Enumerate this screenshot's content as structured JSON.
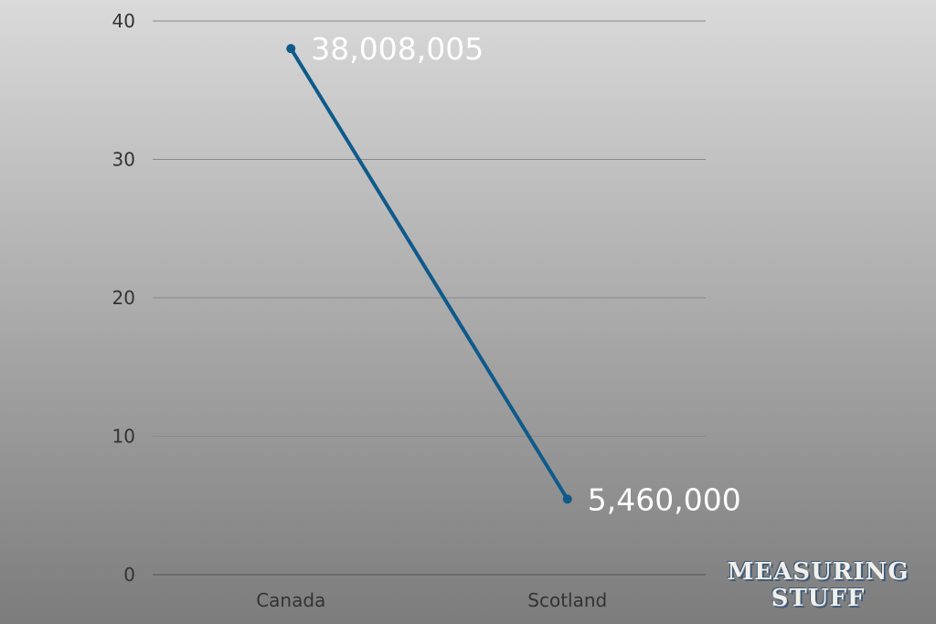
{
  "chart_data": {
    "type": "line",
    "categories": [
      "Canada",
      "Scotland"
    ],
    "values": [
      38.008005,
      5.46
    ],
    "data_labels": [
      "38,008,005",
      "5,460,000"
    ],
    "yticks": [
      "0",
      "10",
      "20",
      "30",
      "40"
    ],
    "ylim": [
      0,
      40
    ],
    "grid": true,
    "line_color": "#0f5a8a",
    "title": "",
    "xlabel": "",
    "ylabel": ""
  },
  "logo": {
    "line1": "MEASURING",
    "line2": "STUFF"
  }
}
